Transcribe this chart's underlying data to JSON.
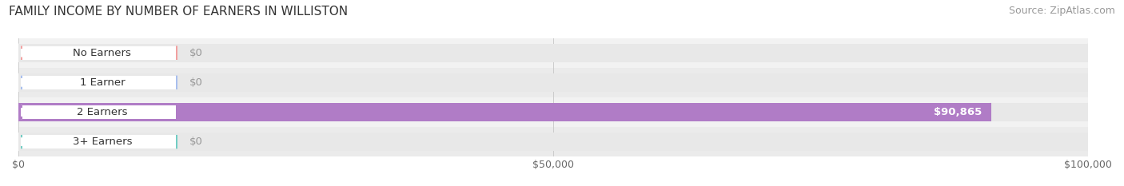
{
  "title": "FAMILY INCOME BY NUMBER OF EARNERS IN WILLISTON",
  "source": "Source: ZipAtlas.com",
  "categories": [
    "No Earners",
    "1 Earner",
    "2 Earners",
    "3+ Earners"
  ],
  "values": [
    0,
    0,
    90865,
    0
  ],
  "bar_colors": [
    "#f2a0a0",
    "#a8bfee",
    "#b07cc6",
    "#72cdc4"
  ],
  "bar_bg_color": "#e8e8e8",
  "row_bg_even": "#f2f2f2",
  "row_bg_odd": "#ebebeb",
  "xlim": [
    0,
    100000
  ],
  "xticks": [
    0,
    50000,
    100000
  ],
  "xtick_labels": [
    "$0",
    "$50,000",
    "$100,000"
  ],
  "value_labels": [
    "$0",
    "$0",
    "$90,865",
    "$0"
  ],
  "title_fontsize": 11,
  "source_fontsize": 9,
  "label_fontsize": 9.5,
  "tick_fontsize": 9
}
